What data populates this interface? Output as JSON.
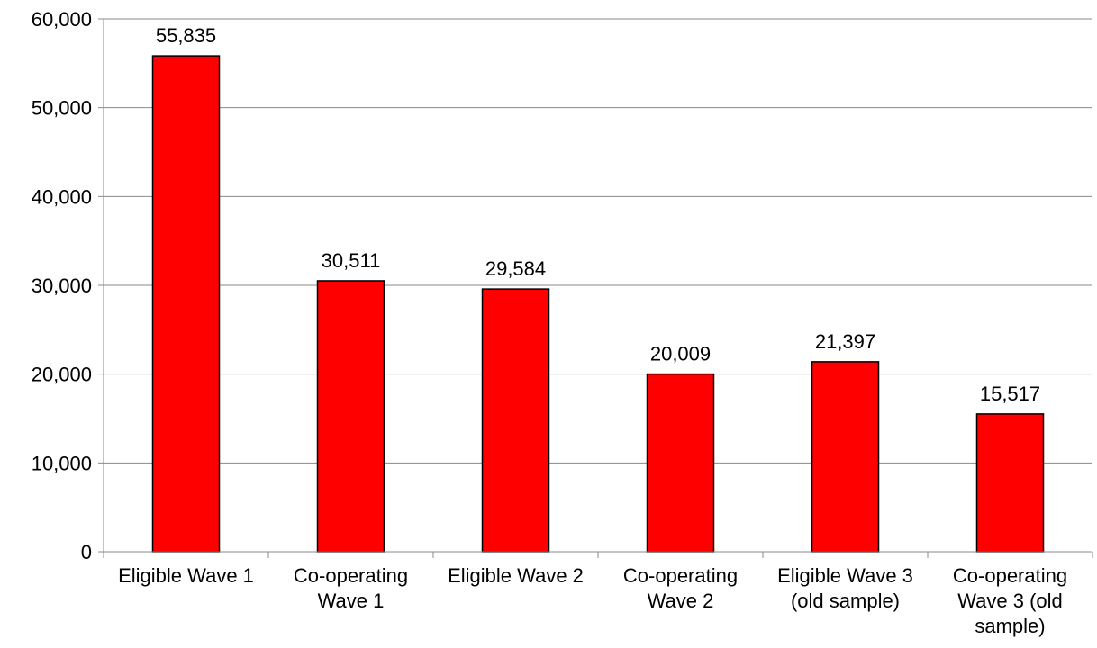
{
  "chart_data": {
    "type": "bar",
    "categories": [
      [
        "Eligible Wave 1"
      ],
      [
        "Co-operating",
        "Wave 1"
      ],
      [
        "Eligible Wave 2"
      ],
      [
        "Co-operating",
        "Wave 2"
      ],
      [
        "Eligible Wave 3",
        "(old sample)"
      ],
      [
        "Co-operating",
        "Wave 3 (old",
        "sample)"
      ]
    ],
    "values": [
      55835,
      30511,
      29584,
      20009,
      21397,
      15517
    ],
    "value_labels": [
      "55,835",
      "30,511",
      "29,584",
      "20,009",
      "21,397",
      "15,517"
    ],
    "y_ticks": [
      0,
      10000,
      20000,
      30000,
      40000,
      50000,
      60000
    ],
    "y_tick_labels": [
      "0",
      "10,000",
      "20,000",
      "30,000",
      "40,000",
      "50,000",
      "60,000"
    ],
    "ylim": [
      0,
      60000
    ],
    "grid": true,
    "legend": "none",
    "bar_color": "#ff0000",
    "bar_stroke": "#000000",
    "grid_color": "#888888"
  }
}
